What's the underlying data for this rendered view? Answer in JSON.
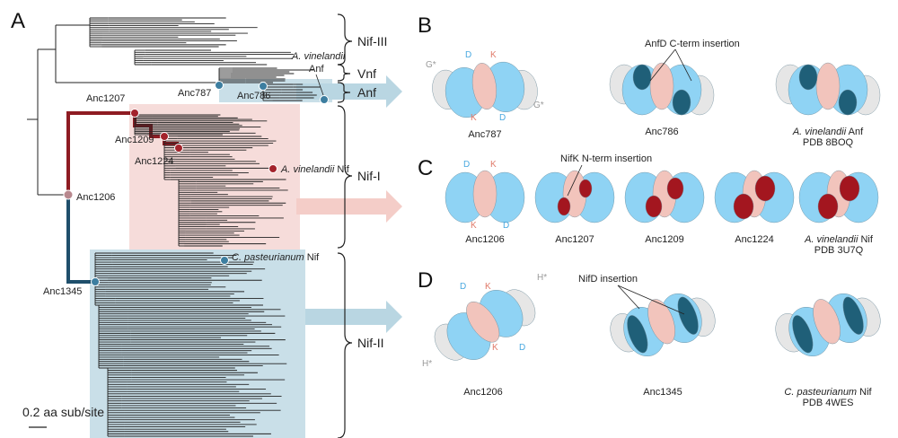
{
  "panels": {
    "a": "A",
    "b": "B",
    "c": "C",
    "d": "D"
  },
  "tree": {
    "scale_bar": "0.2 aa sub/site",
    "nodes": {
      "anc787": "Anc787",
      "anc786": "Anc786",
      "anc1207": "Anc1207",
      "anc1209": "Anc1209",
      "anc1224": "Anc1224",
      "anc1206": "Anc1206",
      "anc1345": "Anc1345"
    },
    "leaves": {
      "av_anf_species": "A. vinelandii",
      "av_anf_type": "Anf",
      "av_nif_species": "A. vinelandii",
      "av_nif_type": " Nif",
      "cp_nif_species": "C. pasteurianum",
      "cp_nif_type": " Nif"
    },
    "groups": {
      "nif3": "Nif-III",
      "vnf": "Vnf",
      "anf": "Anf",
      "nif1": "Nif-I",
      "nif2": "Nif-II"
    }
  },
  "panel_b": {
    "annotation": "AnfD C-term insertion",
    "chains": {
      "d1": "D",
      "k1": "K",
      "g1": "G*",
      "k2": "K",
      "d2": "D",
      "g2": "G*"
    },
    "structures": [
      {
        "label": "Anc787"
      },
      {
        "label": "Anc786"
      },
      {
        "species": "A. vinelandii",
        "suffix": " Anf",
        "pdb": "PDB 8BOQ"
      }
    ]
  },
  "panel_c": {
    "annotation": "NifK N-term insertion",
    "chains": {
      "d1": "D",
      "k1": "K",
      "k2": "K",
      "d2": "D"
    },
    "structures": [
      {
        "label": "Anc1206"
      },
      {
        "label": "Anc1207"
      },
      {
        "label": "Anc1209"
      },
      {
        "label": "Anc1224"
      },
      {
        "species": "A. vinelandii",
        "suffix": " Nif",
        "pdb": "PDB 3U7Q"
      }
    ]
  },
  "panel_d": {
    "annotation": "NifD insertion",
    "chains": {
      "d1": "D",
      "k1": "K",
      "h1": "H*",
      "k2": "K",
      "d2": "D",
      "h2": "H*"
    },
    "structures": [
      {
        "label": "Anc1206"
      },
      {
        "label": "Anc1345"
      },
      {
        "species": "C. pasteurianum",
        "suffix": " Nif",
        "pdb": "PDB 4WES"
      }
    ]
  },
  "colors": {
    "subunit_d": "#8fd3f4",
    "subunit_k": "#f2c4bc",
    "insertion_anf": "#1f5f78",
    "insertion_nif_k": "#a3161f",
    "insertion_nif_d": "#1f5f78",
    "accessory": "#e6e6e6",
    "clade_nif1_shade": "#f6dcda",
    "clade_nif2_shade": "#c9dfe8",
    "anf_arrow": "#b9d6e2",
    "nif1_arrow": "#f4cdc8",
    "lineage_red": "#8e1b22",
    "lineage_blue": "#1f4f6b"
  }
}
